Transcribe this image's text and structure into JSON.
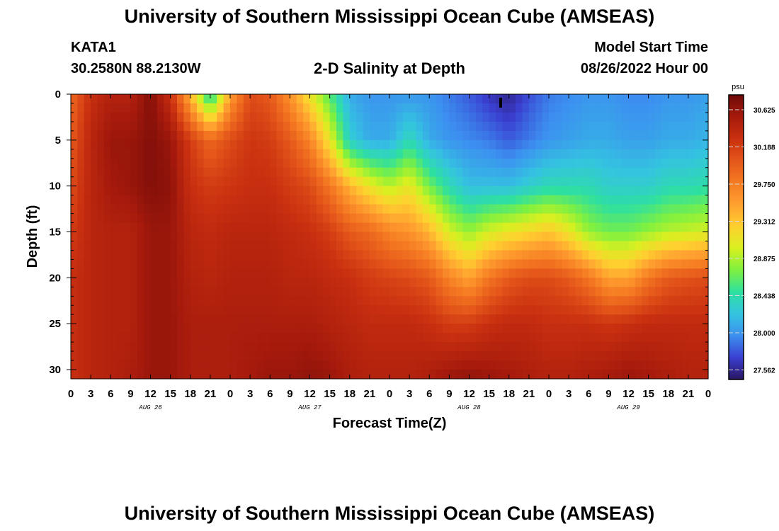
{
  "title": "University of Southern Mississippi Ocean Cube (AMSEAS)",
  "title_repeat": "University of Southern Mississippi Ocean Cube (AMSEAS)",
  "station": {
    "name": "KATA1",
    "coords": "30.2580N  88.2130W"
  },
  "plot_title": "2-D Salinity at Depth",
  "model": {
    "label": "Model Start Time",
    "value": "08/26/2022 Hour 00"
  },
  "chart_data": {
    "type": "heatmap",
    "title": "2-D Salinity at Depth",
    "xlabel": "Forecast Time(Z)",
    "ylabel": "Depth (ft)",
    "x_hours": [
      0,
      96
    ],
    "ylim": [
      0,
      31
    ],
    "x_tick_labels": [
      "0",
      "3",
      "6",
      "9",
      "12",
      "15",
      "18",
      "21",
      "0",
      "3",
      "6",
      "9",
      "12",
      "15",
      "18",
      "21",
      "0",
      "3",
      "6",
      "9",
      "12",
      "15",
      "18",
      "21",
      "0",
      "3",
      "6",
      "9",
      "12",
      "15",
      "18",
      "21",
      "0"
    ],
    "y_ticks": [
      0,
      5,
      10,
      15,
      20,
      25,
      30
    ],
    "day_labels": [
      {
        "label": "AUG 26",
        "hour": 12
      },
      {
        "label": "AUG 27",
        "hour": 36
      },
      {
        "label": "AUG 28",
        "hour": 60
      },
      {
        "label": "AUG 29",
        "hour": 84
      }
    ],
    "colorbar": {
      "unit": "psu",
      "levels": [
        "30.625",
        "30.188",
        "29.750",
        "29.312",
        "28.875",
        "28.438",
        "28.000",
        "27.562"
      ],
      "range": [
        27.45,
        30.8
      ],
      "colors": [
        "#2a1660",
        "#3a3fd0",
        "#3c8ff0",
        "#34c4e0",
        "#2ee0a0",
        "#7ff040",
        "#d8f020",
        "#ffd030",
        "#ffa030",
        "#f57a22",
        "#e4561a",
        "#c93010",
        "#a61a0c",
        "#6e0a08"
      ]
    },
    "salinity_profiles": [
      {
        "hour": 0,
        "depths": [
          0,
          5,
          10,
          15,
          20,
          25,
          31
        ],
        "values": [
          29.9,
          30.0,
          30.1,
          30.2,
          30.3,
          30.3,
          30.3
        ]
      },
      {
        "hour": 3,
        "depths": [
          0,
          5,
          10,
          15,
          20,
          25,
          31
        ],
        "values": [
          30.3,
          30.4,
          30.4,
          30.4,
          30.4,
          30.4,
          30.4
        ]
      },
      {
        "hour": 6,
        "depths": [
          0,
          5,
          10,
          15,
          20,
          25,
          31
        ],
        "values": [
          30.45,
          30.6,
          30.55,
          30.45,
          30.45,
          30.45,
          30.45
        ]
      },
      {
        "hour": 9,
        "depths": [
          0,
          5,
          10,
          15,
          20,
          25,
          31
        ],
        "values": [
          30.45,
          30.6,
          30.6,
          30.45,
          30.45,
          30.45,
          30.5
        ]
      },
      {
        "hour": 12,
        "depths": [
          0,
          5,
          10,
          15,
          20,
          25,
          31
        ],
        "values": [
          30.7,
          30.7,
          30.7,
          30.6,
          30.6,
          30.6,
          30.6
        ]
      },
      {
        "hour": 15,
        "depths": [
          0,
          5,
          10,
          15,
          20,
          25,
          31
        ],
        "values": [
          30.3,
          30.6,
          30.65,
          30.6,
          30.6,
          30.6,
          30.6
        ]
      },
      {
        "hour": 18,
        "depths": [
          0,
          5,
          10,
          15,
          20,
          25,
          31
        ],
        "values": [
          29.4,
          30.2,
          30.3,
          30.4,
          30.45,
          30.5,
          30.5
        ]
      },
      {
        "hour": 21,
        "depths": [
          0,
          5,
          10,
          15,
          20,
          25,
          31
        ],
        "values": [
          28.3,
          29.9,
          30.2,
          30.35,
          30.4,
          30.5,
          30.5
        ]
      },
      {
        "hour": 24,
        "depths": [
          0,
          5,
          10,
          15,
          20,
          25,
          31
        ],
        "values": [
          29.5,
          30.1,
          30.25,
          30.4,
          30.45,
          30.5,
          30.5
        ]
      },
      {
        "hour": 27,
        "depths": [
          0,
          5,
          10,
          15,
          20,
          25,
          31
        ],
        "values": [
          30.1,
          30.25,
          30.3,
          30.4,
          30.45,
          30.5,
          30.55
        ]
      },
      {
        "hour": 30,
        "depths": [
          0,
          5,
          10,
          15,
          20,
          25,
          31
        ],
        "values": [
          30.0,
          30.2,
          30.3,
          30.4,
          30.45,
          30.5,
          30.6
        ]
      },
      {
        "hour": 33,
        "depths": [
          0,
          5,
          10,
          15,
          20,
          25,
          31
        ],
        "values": [
          29.6,
          30.0,
          30.2,
          30.35,
          30.4,
          30.5,
          30.6
        ]
      },
      {
        "hour": 36,
        "depths": [
          0,
          5,
          10,
          15,
          20,
          25,
          31
        ],
        "values": [
          29.1,
          29.7,
          30.1,
          30.3,
          30.4,
          30.5,
          30.65
        ]
      },
      {
        "hour": 39,
        "depths": [
          0,
          5,
          10,
          15,
          20,
          25,
          31
        ],
        "values": [
          28.6,
          29.1,
          29.8,
          30.2,
          30.35,
          30.45,
          30.6
        ]
      },
      {
        "hour": 42,
        "depths": [
          0,
          5,
          10,
          15,
          20,
          25,
          31
        ],
        "values": [
          28.1,
          28.3,
          29.4,
          30.0,
          30.3,
          30.4,
          30.5
        ]
      },
      {
        "hour": 45,
        "depths": [
          0,
          5,
          10,
          15,
          20,
          25,
          31
        ],
        "values": [
          28.0,
          28.1,
          29.1,
          29.9,
          30.2,
          30.35,
          30.45
        ]
      },
      {
        "hour": 48,
        "depths": [
          0,
          5,
          10,
          15,
          20,
          25,
          31
        ],
        "values": [
          28.0,
          28.1,
          28.9,
          29.7,
          30.15,
          30.35,
          30.45
        ]
      },
      {
        "hour": 51,
        "depths": [
          0,
          5,
          10,
          15,
          20,
          25,
          31
        ],
        "values": [
          28.0,
          28.4,
          29.1,
          29.6,
          30.1,
          30.35,
          30.45
        ]
      },
      {
        "hour": 54,
        "depths": [
          0,
          5,
          10,
          15,
          20,
          25,
          31
        ],
        "values": [
          28.0,
          28.1,
          28.7,
          29.4,
          30.0,
          30.3,
          30.5
        ]
      },
      {
        "hour": 57,
        "depths": [
          0,
          5,
          10,
          15,
          20,
          25,
          31
        ],
        "values": [
          27.9,
          28.0,
          28.4,
          29.0,
          29.7,
          30.2,
          30.6
        ]
      },
      {
        "hour": 60,
        "depths": [
          0,
          5,
          10,
          15,
          20,
          25,
          31
        ],
        "values": [
          27.8,
          27.95,
          28.2,
          28.8,
          29.5,
          30.2,
          30.65
        ]
      },
      {
        "hour": 63,
        "depths": [
          0,
          5,
          10,
          15,
          20,
          25,
          31
        ],
        "values": [
          27.65,
          27.9,
          28.2,
          29.0,
          29.8,
          30.3,
          30.6
        ]
      },
      {
        "hour": 66,
        "depths": [
          0,
          5,
          10,
          15,
          20,
          25,
          31
        ],
        "values": [
          27.55,
          27.8,
          28.2,
          29.1,
          30.0,
          30.35,
          30.55
        ]
      },
      {
        "hour": 69,
        "depths": [
          0,
          5,
          10,
          15,
          20,
          25,
          31
        ],
        "values": [
          27.75,
          27.9,
          28.3,
          29.2,
          30.1,
          30.35,
          30.5
        ]
      },
      {
        "hour": 72,
        "depths": [
          0,
          5,
          10,
          15,
          20,
          25,
          31
        ],
        "values": [
          27.9,
          28.0,
          28.4,
          29.3,
          30.1,
          30.3,
          30.45
        ]
      },
      {
        "hour": 75,
        "depths": [
          0,
          5,
          10,
          15,
          20,
          25,
          31
        ],
        "values": [
          27.95,
          28.05,
          28.4,
          29.1,
          30.0,
          30.3,
          30.45
        ]
      },
      {
        "hour": 78,
        "depths": [
          0,
          5,
          10,
          15,
          20,
          25,
          31
        ],
        "values": [
          28.0,
          28.1,
          28.4,
          28.8,
          29.8,
          30.3,
          30.5
        ]
      },
      {
        "hour": 81,
        "depths": [
          0,
          5,
          10,
          15,
          20,
          25,
          31
        ],
        "values": [
          28.0,
          28.1,
          28.3,
          28.7,
          29.5,
          30.25,
          30.55
        ]
      },
      {
        "hour": 84,
        "depths": [
          0,
          5,
          10,
          15,
          20,
          25,
          31
        ],
        "values": [
          27.95,
          28.05,
          28.3,
          28.7,
          29.5,
          30.3,
          30.6
        ]
      },
      {
        "hour": 87,
        "depths": [
          0,
          5,
          10,
          15,
          20,
          25,
          31
        ],
        "values": [
          27.95,
          28.05,
          28.3,
          28.8,
          29.8,
          30.35,
          30.55
        ]
      },
      {
        "hour": 90,
        "depths": [
          0,
          5,
          10,
          15,
          20,
          25,
          31
        ],
        "values": [
          28.0,
          28.1,
          28.4,
          28.9,
          30.0,
          30.35,
          30.5
        ]
      },
      {
        "hour": 93,
        "depths": [
          0,
          5,
          10,
          15,
          20,
          25,
          31
        ],
        "values": [
          28.0,
          28.1,
          28.4,
          28.95,
          30.05,
          30.35,
          30.45
        ]
      },
      {
        "hour": 96,
        "depths": [
          0,
          5,
          10,
          15,
          20,
          25,
          31
        ],
        "values": [
          28.05,
          28.15,
          28.45,
          29.0,
          30.1,
          30.35,
          30.45
        ]
      }
    ]
  }
}
